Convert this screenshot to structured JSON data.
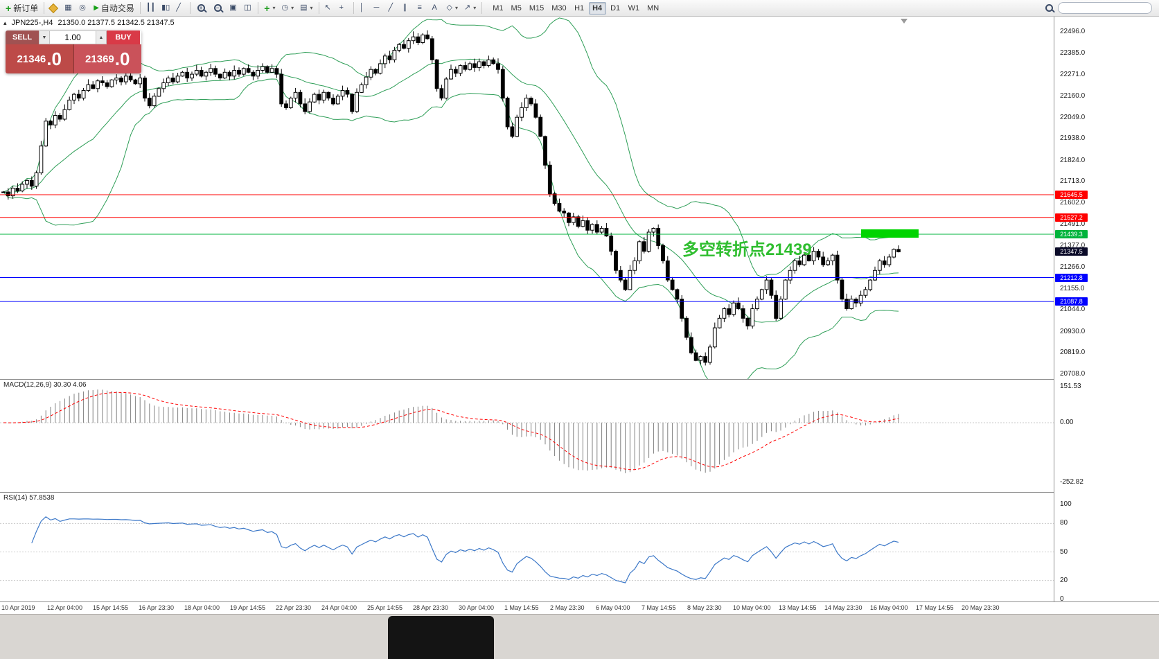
{
  "toolbar": {
    "new_order_label": "新订单",
    "autotrade_label": "自动交易",
    "timeframes": [
      "M1",
      "M5",
      "M15",
      "M30",
      "H1",
      "H4",
      "D1",
      "W1",
      "MN"
    ],
    "active_timeframe": "H4"
  },
  "icons": {
    "plus": "+",
    "minus": "−",
    "data_window": "▦",
    "navigator": "◎",
    "play": "▶",
    "chart_bars": "┃┃",
    "chart_candles": "▮▯",
    "chart_line": "╱",
    "auto_scroll": "▣",
    "chart_shift_btn": "◫",
    "clock": "◷",
    "template": "▤",
    "cursor": "↖",
    "crosshair": "+",
    "vline": "│",
    "hline": "─",
    "trendline": "╱",
    "channel": "∥",
    "fibonacci": "≡",
    "text_tool": "A",
    "shapes": "◇",
    "arrow_tool": "↗",
    "volume_down": "▼",
    "volume_up": "▲",
    "symbol_mini": "▴"
  },
  "chart": {
    "title": "JPN225-,H4",
    "ohlc_text": "21350.0 21377.5 21342.5 21347.5",
    "annotation_text": "多空转折点21439",
    "current_price": "21347.5",
    "colors": {
      "bollinger": "#2e9e57",
      "macd_hist": "#808080",
      "macd_signal": "#ff0000",
      "rsi_line": "#3c78c8",
      "annotation": "#2fbe2f",
      "highlight_rect": "#00d400"
    },
    "price_axis_labels": [
      "22496.0",
      "22385.0",
      "22271.0",
      "22160.0",
      "22049.0",
      "21938.0",
      "21824.0",
      "21713.0",
      "21602.0",
      "21491.0",
      "21377.0",
      "21266.0",
      "21155.0",
      "21044.0",
      "20930.0",
      "20819.0",
      "20708.0"
    ],
    "levels": [
      {
        "price": "21645.5",
        "value": 21645.5,
        "color": "#ff0000"
      },
      {
        "price": "21527.2",
        "value": 21527.2,
        "color": "#ff0000"
      },
      {
        "price": "21439.3",
        "value": 21439.3,
        "color": "#00b43c"
      },
      {
        "price": "21347.5",
        "value": 21347.5,
        "color": "#0a0a28",
        "current": true
      },
      {
        "price": "21212.8",
        "value": 21212.8,
        "color": "#0000ff"
      },
      {
        "price": "21087.8",
        "value": 21087.8,
        "color": "#0000ff"
      }
    ]
  },
  "trade_panel": {
    "sell_label": "SELL",
    "buy_label": "BUY",
    "volume": "1.00",
    "sell_price_base": "21346",
    "sell_price_big": ".0",
    "buy_price_base": "21369",
    "buy_price_big": ".0"
  },
  "indicators": {
    "macd": {
      "label": "MACD(12,26,9) 30.30 4.06",
      "axis": [
        "151.53",
        "0.00",
        "-252.82"
      ]
    },
    "rsi": {
      "label": "RSI(14) 57.8538",
      "axis": [
        "100",
        "80",
        "50",
        "20",
        "0"
      ]
    }
  },
  "time_axis": [
    "10 Apr 2019",
    "12 Apr 04:00",
    "15 Apr 14:55",
    "16 Apr 23:30",
    "18 Apr 04:00",
    "19 Apr 14:55",
    "22 Apr 23:30",
    "24 Apr 04:00",
    "25 Apr 14:55",
    "28 Apr 23:30",
    "30 Apr 04:00",
    "1 May 14:55",
    "2 May 23:30",
    "6 May 04:00",
    "7 May 14:55",
    "8 May 23:30",
    "10 May 04:00",
    "13 May 14:55",
    "14 May 23:30",
    "16 May 04:00",
    "17 May 14:55",
    "20 May 23:30"
  ],
  "chart_data": {
    "type": "candlestick",
    "symbol": "JPN225-",
    "timeframe": "H4",
    "price_axis_top": 22496.0,
    "price_axis_bottom": 20708.0,
    "overlays": {
      "bollinger_period": 20,
      "bollinger_deviation": 2
    },
    "macd_params": [
      12,
      26,
      9
    ],
    "macd_values_shown": [
      30.3,
      4.06
    ],
    "macd_scale": [
      151.53,
      0.0,
      -252.82
    ],
    "rsi_period": 14,
    "rsi_value_shown": 57.8538,
    "horizontal_levels": [
      21645.5,
      21527.2,
      21439.3,
      21212.8,
      21087.8
    ],
    "closes": [
      21660,
      21640,
      21680,
      21665,
      21700,
      21720,
      21690,
      21760,
      21900,
      22030,
      22010,
      22060,
      22040,
      22090,
      22140,
      22170,
      22150,
      22190,
      22220,
      22200,
      22240,
      22230,
      22210,
      22245,
      22255,
      22235,
      22265,
      22245,
      22225,
      22255,
      22150,
      22110,
      22160,
      22200,
      22230,
      22255,
      22235,
      22265,
      22285,
      22255,
      22275,
      22295,
      22265,
      22285,
      22305,
      22275,
      22255,
      22285,
      22265,
      22295,
      22275,
      22305,
      22285,
      22265,
      22295,
      22315,
      22285,
      22305,
      22275,
      22120,
      22100,
      22150,
      22180,
      22120,
      22080,
      22130,
      22170,
      22140,
      22180,
      22150,
      22120,
      22160,
      22190,
      22170,
      22080,
      22180,
      22220,
      22260,
      22300,
      22280,
      22330,
      22370,
      22350,
      22400,
      22430,
      22410,
      22450,
      22470,
      22440,
      22480,
      22460,
      22350,
      22200,
      22150,
      22250,
      22300,
      22280,
      22320,
      22300,
      22330,
      22310,
      22340,
      22320,
      22350,
      22330,
      22300,
      22150,
      22000,
      21950,
      22050,
      22100,
      22150,
      22120,
      22050,
      21950,
      21800,
      21650,
      21600,
      21560,
      21550,
      21500,
      21530,
      21480,
      21510,
      21460,
      21490,
      21450,
      21470,
      21430,
      21350,
      21250,
      21200,
      21150,
      21250,
      21300,
      21400,
      21350,
      21450,
      21470,
      21380,
      21300,
      21200,
      21150,
      21100,
      21000,
      20900,
      20820,
      20780,
      20800,
      20770,
      20850,
      20950,
      21000,
      21050,
      21020,
      21080,
      21050,
      21000,
      20960,
      21050,
      21100,
      21150,
      21200,
      21120,
      21000,
      21100,
      21200,
      21250,
      21300,
      21280,
      21330,
      21300,
      21350,
      21320,
      21280,
      21300,
      21330,
      21200,
      21100,
      21050,
      21100,
      21080,
      21120,
      21150,
      21200,
      21250,
      21300,
      21280,
      21320,
      21360,
      21347.5
    ]
  }
}
